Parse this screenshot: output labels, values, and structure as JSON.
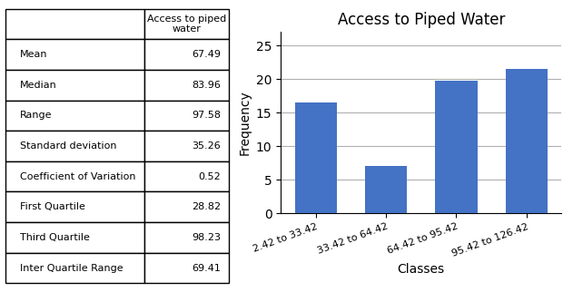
{
  "chart_data": {
    "type": "bar",
    "title": "Access to Piped Water",
    "categories": [
      "2.42 to 33.42",
      "33.42 to 64.42",
      "64.42 to 95.42",
      "95.42 to 126.42"
    ],
    "values": [
      16.5,
      7.0,
      19.8,
      21.5
    ],
    "color": "#4472C4",
    "xlabel": "Classes",
    "ylabel": "Frequency",
    "ylim": [
      0,
      27
    ],
    "yticks": [
      0,
      5,
      10,
      15,
      20,
      25
    ],
    "grid": true,
    "table": {
      "header": "Access to piped\nwater",
      "rows": [
        [
          "Mean",
          "67.49"
        ],
        [
          "Median",
          "83.96"
        ],
        [
          "Range",
          "97.58"
        ],
        [
          "Standard deviation",
          "35.26"
        ],
        [
          "Coefficient of Variation",
          "0.52"
        ],
        [
          "First Quartile",
          "28.82"
        ],
        [
          "Third Quartile",
          "98.23"
        ],
        [
          "Inter Quartile Range",
          "69.41"
        ]
      ]
    }
  }
}
